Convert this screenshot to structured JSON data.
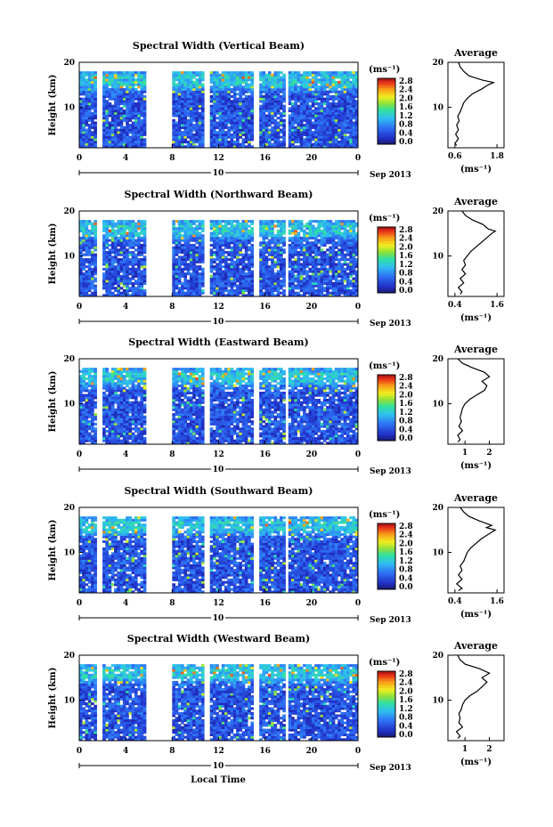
{
  "figure": {
    "xlabel": "Local Time",
    "date_label": "Sep 2013",
    "day_label": "10",
    "ylabel": "Height (km)",
    "colorbar_units": "(ms⁻¹)",
    "average_title": "Average",
    "average_xlabel": "(ms⁻¹)"
  },
  "chart_data": [
    {
      "type": "heatmap",
      "title": "Spectral Width (Vertical Beam)",
      "xlabel": "Local Time",
      "ylabel": "Height (km)",
      "xlim": [
        0,
        24
      ],
      "ylim": [
        1,
        20
      ],
      "x_ticks": [
        "0",
        "4",
        "8",
        "12",
        "16",
        "20",
        "0"
      ],
      "y_ticks": [
        "10",
        "20"
      ],
      "colorbar": {
        "units": "(ms⁻¹)",
        "ticks": [
          "0.0",
          "0.4",
          "0.8",
          "1.2",
          "1.6",
          "2.0",
          "2.4",
          "2.8"
        ],
        "range": [
          0,
          2.8
        ]
      },
      "data_gaps_hours": [
        [
          0,
          0.1
        ],
        [
          1.4,
          1.9
        ],
        [
          5.7,
          8.0
        ],
        [
          10.7,
          11.2
        ],
        [
          14.9,
          15.4
        ],
        [
          17.7,
          18.1
        ]
      ],
      "coverage_top_km": 18,
      "average": {
        "title": "Average",
        "xlabel": "(ms⁻¹)",
        "x_ticks": [
          "0.6",
          "1.8"
        ],
        "xlim": [
          0.4,
          2.0
        ],
        "y_ticks": [
          "10",
          "20"
        ],
        "profile": [
          [
            1.5,
            0.65
          ],
          [
            2,
            0.6
          ],
          [
            3,
            0.7
          ],
          [
            4,
            0.62
          ],
          [
            5,
            0.7
          ],
          [
            6,
            0.65
          ],
          [
            7,
            0.72
          ],
          [
            8,
            0.68
          ],
          [
            9,
            0.75
          ],
          [
            10,
            0.8
          ],
          [
            11,
            0.85
          ],
          [
            12,
            0.95
          ],
          [
            13,
            1.1
          ],
          [
            14,
            1.35
          ],
          [
            15,
            1.55
          ],
          [
            15.5,
            1.7
          ],
          [
            16,
            1.4
          ],
          [
            17,
            1.0
          ],
          [
            18,
            0.85
          ],
          [
            19,
            0.75
          ],
          [
            20,
            0.7
          ]
        ]
      }
    },
    {
      "type": "heatmap",
      "title": "Spectral Width (Northward Beam)",
      "xlabel": "Local Time",
      "ylabel": "Height (km)",
      "xlim": [
        0,
        24
      ],
      "ylim": [
        1,
        20
      ],
      "x_ticks": [
        "0",
        "4",
        "8",
        "12",
        "16",
        "20",
        "0"
      ],
      "y_ticks": [
        "10",
        "20"
      ],
      "colorbar": {
        "units": "(ms⁻¹)",
        "ticks": [
          "0.0",
          "0.4",
          "0.8",
          "1.2",
          "1.6",
          "2.0",
          "2.4",
          "2.8"
        ],
        "range": [
          0,
          2.8
        ]
      },
      "data_gaps_hours": [
        [
          0,
          0.1
        ],
        [
          1.4,
          1.9
        ],
        [
          5.7,
          8.0
        ],
        [
          10.7,
          11.2
        ],
        [
          14.9,
          15.4
        ],
        [
          17.7,
          18.1
        ]
      ],
      "coverage_top_km": 18,
      "average": {
        "title": "Average",
        "xlabel": "(ms⁻¹)",
        "x_ticks": [
          "0.4",
          "1.6"
        ],
        "xlim": [
          0.2,
          1.8
        ],
        "y_ticks": [
          "10",
          "20"
        ],
        "profile": [
          [
            1.5,
            0.55
          ],
          [
            2,
            0.6
          ],
          [
            3,
            0.5
          ],
          [
            4,
            0.65
          ],
          [
            5,
            0.55
          ],
          [
            6,
            0.7
          ],
          [
            7,
            0.6
          ],
          [
            8,
            0.7
          ],
          [
            9,
            0.65
          ],
          [
            10,
            0.75
          ],
          [
            11,
            0.85
          ],
          [
            12,
            1.0
          ],
          [
            13,
            1.15
          ],
          [
            14,
            1.3
          ],
          [
            15,
            1.45
          ],
          [
            15.5,
            1.55
          ],
          [
            16,
            1.35
          ],
          [
            17,
            1.2
          ],
          [
            18,
            0.9
          ],
          [
            19,
            0.7
          ],
          [
            20,
            0.6
          ]
        ]
      }
    },
    {
      "type": "heatmap",
      "title": "Spectral Width (Eastward Beam)",
      "xlabel": "Local Time",
      "ylabel": "Height (km)",
      "xlim": [
        0,
        24
      ],
      "ylim": [
        1,
        20
      ],
      "x_ticks": [
        "0",
        "4",
        "8",
        "12",
        "16",
        "20",
        "0"
      ],
      "y_ticks": [
        "10",
        "20"
      ],
      "colorbar": {
        "units": "(ms⁻¹)",
        "ticks": [
          "0.0",
          "0.4",
          "0.8",
          "1.2",
          "1.6",
          "2.0",
          "2.4",
          "2.8"
        ],
        "range": [
          0,
          2.8
        ]
      },
      "data_gaps_hours": [
        [
          0,
          0.1
        ],
        [
          1.4,
          1.9
        ],
        [
          5.7,
          8.0
        ],
        [
          10.7,
          11.2
        ],
        [
          14.9,
          15.4
        ],
        [
          17.7,
          18.1
        ]
      ],
      "coverage_top_km": 18,
      "average": {
        "title": "Average",
        "xlabel": "(ms⁻¹)",
        "x_ticks": [
          "1",
          "2"
        ],
        "xlim": [
          0.3,
          2.6
        ],
        "y_ticks": [
          "10",
          "20"
        ],
        "profile": [
          [
            1.5,
            0.7
          ],
          [
            2,
            0.8
          ],
          [
            3,
            0.7
          ],
          [
            4,
            0.9
          ],
          [
            5,
            0.75
          ],
          [
            6,
            0.85
          ],
          [
            7,
            0.8
          ],
          [
            8,
            0.85
          ],
          [
            9,
            0.9
          ],
          [
            10,
            1.0
          ],
          [
            11,
            1.2
          ],
          [
            12,
            1.5
          ],
          [
            13,
            1.8
          ],
          [
            14,
            1.9
          ],
          [
            15,
            1.7
          ],
          [
            16,
            2.0
          ],
          [
            17,
            1.8
          ],
          [
            18,
            1.3
          ],
          [
            19,
            0.9
          ],
          [
            20,
            0.7
          ]
        ]
      }
    },
    {
      "type": "heatmap",
      "title": "Spectral Width (Southward Beam)",
      "xlabel": "Local Time",
      "ylabel": "Height (km)",
      "xlim": [
        0,
        24
      ],
      "ylim": [
        1,
        20
      ],
      "x_ticks": [
        "0",
        "4",
        "8",
        "12",
        "16",
        "20",
        "0"
      ],
      "y_ticks": [
        "10",
        "20"
      ],
      "colorbar": {
        "units": "(ms⁻¹)",
        "ticks": [
          "0.0",
          "0.4",
          "0.8",
          "1.2",
          "1.6",
          "2.0",
          "2.4",
          "2.8"
        ],
        "range": [
          0,
          2.8
        ]
      },
      "data_gaps_hours": [
        [
          0,
          0.1
        ],
        [
          1.4,
          1.9
        ],
        [
          5.7,
          8.0
        ],
        [
          10.7,
          11.2
        ],
        [
          14.9,
          15.4
        ],
        [
          17.7,
          18.1
        ]
      ],
      "coverage_top_km": 18,
      "average": {
        "title": "Average",
        "xlabel": "(ms⁻¹)",
        "x_ticks": [
          "0.4",
          "1.6"
        ],
        "xlim": [
          0.2,
          1.8
        ],
        "y_ticks": [
          "10",
          "20"
        ],
        "profile": [
          [
            1.5,
            0.5
          ],
          [
            2,
            0.6
          ],
          [
            3,
            0.45
          ],
          [
            4,
            0.6
          ],
          [
            5,
            0.5
          ],
          [
            6,
            0.6
          ],
          [
            7,
            0.55
          ],
          [
            8,
            0.65
          ],
          [
            9,
            0.7
          ],
          [
            10,
            0.75
          ],
          [
            11,
            0.85
          ],
          [
            12,
            1.0
          ],
          [
            13,
            1.15
          ],
          [
            14,
            1.35
          ],
          [
            15,
            1.55
          ],
          [
            15.5,
            1.3
          ],
          [
            16,
            1.45
          ],
          [
            17,
            1.1
          ],
          [
            18,
            0.8
          ],
          [
            19,
            0.65
          ],
          [
            20,
            0.55
          ]
        ]
      }
    },
    {
      "type": "heatmap",
      "title": "Spectral Width (Westward Beam)",
      "xlabel": "Local Time",
      "ylabel": "Height (km)",
      "xlim": [
        0,
        24
      ],
      "ylim": [
        1,
        20
      ],
      "x_ticks": [
        "0",
        "4",
        "8",
        "12",
        "16",
        "20",
        "0"
      ],
      "y_ticks": [
        "10",
        "20"
      ],
      "colorbar": {
        "units": "(ms⁻¹)",
        "ticks": [
          "0.0",
          "0.4",
          "0.8",
          "1.2",
          "1.6",
          "2.0",
          "2.4",
          "2.8"
        ],
        "range": [
          0,
          2.8
        ]
      },
      "data_gaps_hours": [
        [
          0,
          0.1
        ],
        [
          1.4,
          1.9
        ],
        [
          5.7,
          8.0
        ],
        [
          10.7,
          11.2
        ],
        [
          14.9,
          15.4
        ],
        [
          17.7,
          18.1
        ]
      ],
      "coverage_top_km": 18,
      "average": {
        "title": "Average",
        "xlabel": "(ms⁻¹)",
        "x_ticks": [
          "1",
          "2"
        ],
        "xlim": [
          0.3,
          2.6
        ],
        "y_ticks": [
          "10",
          "20"
        ],
        "profile": [
          [
            1.5,
            0.7
          ],
          [
            2,
            0.8
          ],
          [
            3,
            0.65
          ],
          [
            4,
            0.9
          ],
          [
            5,
            0.75
          ],
          [
            6,
            0.8
          ],
          [
            7,
            0.75
          ],
          [
            8,
            0.85
          ],
          [
            9,
            0.9
          ],
          [
            10,
            1.0
          ],
          [
            11,
            1.2
          ],
          [
            12,
            1.5
          ],
          [
            13,
            1.7
          ],
          [
            14,
            1.9
          ],
          [
            15,
            1.7
          ],
          [
            16,
            2.0
          ],
          [
            17,
            1.6
          ],
          [
            18,
            1.0
          ],
          [
            19,
            0.8
          ],
          [
            20,
            0.7
          ]
        ]
      }
    }
  ]
}
